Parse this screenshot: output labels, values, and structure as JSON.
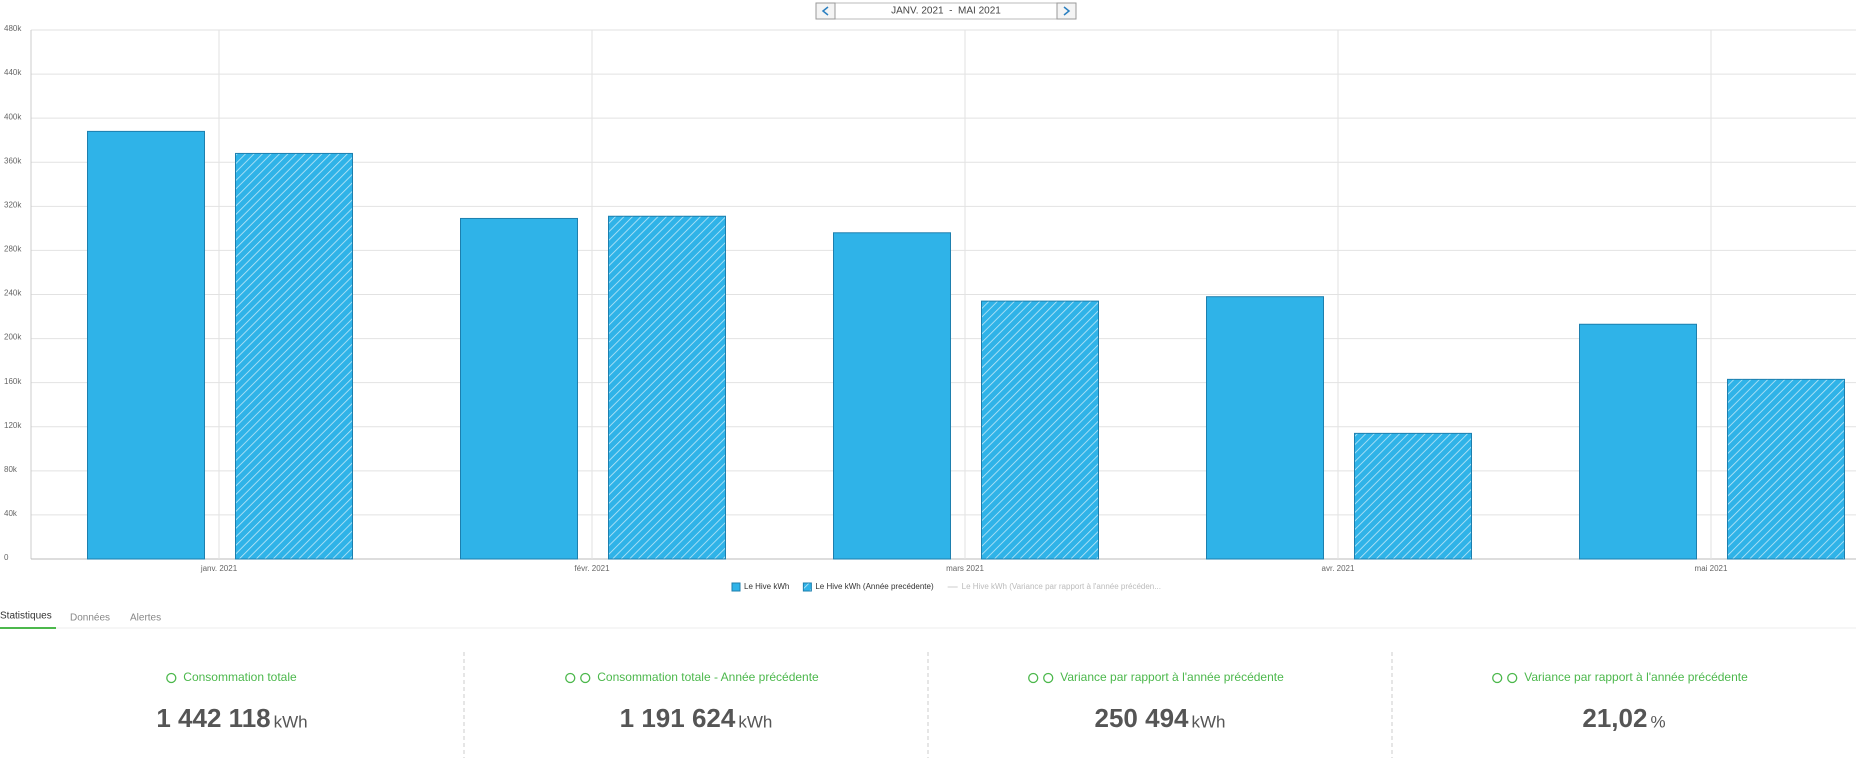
{
  "nav": {
    "period": "JANV. 2021  -  MAI 2021"
  },
  "chart_data": {
    "type": "bar",
    "categories": [
      "janv. 2021",
      "févr. 2021",
      "mars 2021",
      "avr. 2021",
      "mai 2021"
    ],
    "series": [
      {
        "name": "Le Hive kWh",
        "color": "#2fb3e8",
        "pattern": "solid",
        "values": [
          388000,
          309000,
          296000,
          238000,
          213000
        ]
      },
      {
        "name": "Le Hive kWh (Année precédente)",
        "color": "#2fb3e8",
        "pattern": "hatched",
        "values": [
          368000,
          311000,
          234000,
          114000,
          163000
        ]
      }
    ],
    "legend_inactive": "Le Hive kWh (Variance par rapport à l'année précéden...",
    "ylim": [
      0,
      480000
    ],
    "yticks": [
      0,
      {
        "value": 40000,
        "label": "40k"
      },
      {
        "value": 80000,
        "label": "80k"
      },
      {
        "value": 120000,
        "label": "120k"
      },
      {
        "value": 160000,
        "label": "160k"
      },
      {
        "value": 200000,
        "label": "200k"
      },
      {
        "value": 240000,
        "label": "240k"
      },
      {
        "value": 280000,
        "label": "280k"
      },
      {
        "value": 320000,
        "label": "320k"
      },
      {
        "value": 360000,
        "label": "360k"
      },
      {
        "value": 400000,
        "label": "400k"
      },
      {
        "value": 440000,
        "label": "440k"
      },
      {
        "value": 480000,
        "label": "480k"
      }
    ],
    "grid": true
  },
  "tabs": [
    "Statistiques",
    "Données",
    "Alertes"
  ],
  "stats": [
    {
      "label": "Consommation totale",
      "value": "1 442 118",
      "unit": "kWh"
    },
    {
      "label": "Consommation totale - Année précédente",
      "value": "1 191 624",
      "unit": "kWh"
    },
    {
      "label": "Variance par rapport à l'année précédente",
      "value": "250 494",
      "unit": "kWh"
    },
    {
      "label": "Variance par rapport à l'année précédente",
      "value": "21,02",
      "unit": "%"
    }
  ]
}
